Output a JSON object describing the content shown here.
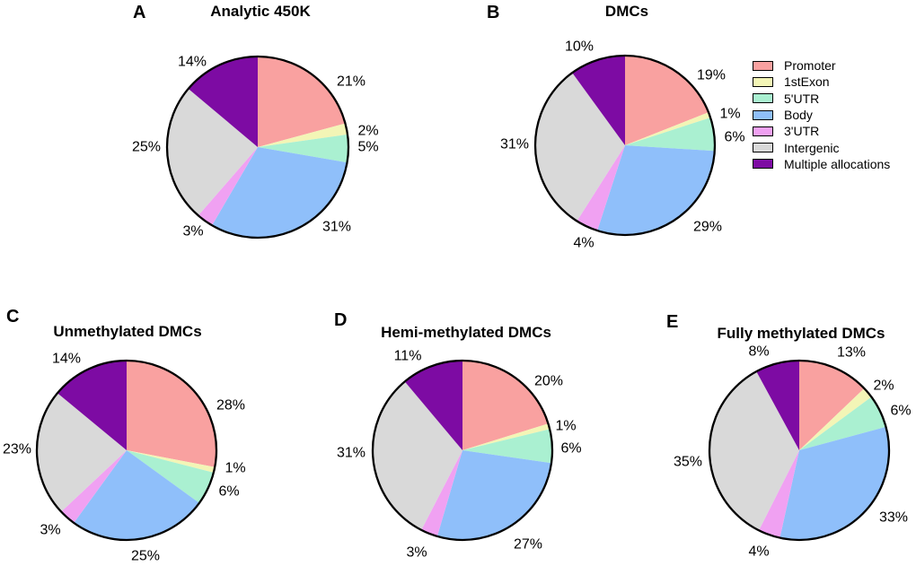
{
  "figure": {
    "background": "#ffffff",
    "panels": [
      {
        "letter": "A",
        "title": "Analytic 450K"
      },
      {
        "letter": "B",
        "title": "DMCs"
      },
      {
        "letter": "C",
        "title": "Unmethylated DMCs"
      },
      {
        "letter": "D",
        "title": "Hemi-methylated DMCs"
      },
      {
        "letter": "E",
        "title": "Fully methylated DMCs"
      }
    ],
    "legend": {
      "position": "right",
      "items": [
        {
          "label": "Promoter",
          "color": "#F9A1A0"
        },
        {
          "label": "1stExon",
          "color": "#F3F5B6"
        },
        {
          "label": "5'UTR",
          "color": "#AAF0D1"
        },
        {
          "label": "Body",
          "color": "#8FBFFA"
        },
        {
          "label": "3'UTR",
          "color": "#F0A1F2"
        },
        {
          "label": "Intergenic",
          "color": "#D9D9D9"
        },
        {
          "label": "Multiple allocations",
          "color": "#7D0BA3"
        }
      ]
    }
  },
  "chart_data": [
    {
      "type": "pie",
      "panel": "A",
      "title": "Analytic 450K",
      "categories": [
        "Promoter",
        "1stExon",
        "5'UTR",
        "Body",
        "3'UTR",
        "Intergenic",
        "Multiple allocations"
      ],
      "values": [
        21,
        2,
        5,
        31,
        3,
        25,
        14
      ],
      "labels": [
        "21%",
        "2%",
        "5%",
        "31%",
        "3%",
        "25%",
        "14%"
      ],
      "unit": "%",
      "start_angle": "12 o'clock",
      "direction": "clockwise",
      "outline_color": "#000000"
    },
    {
      "type": "pie",
      "panel": "B",
      "title": "DMCs",
      "categories": [
        "Promoter",
        "1stExon",
        "5'UTR",
        "Body",
        "3'UTR",
        "Intergenic",
        "Multiple allocations"
      ],
      "values": [
        19,
        1,
        6,
        29,
        4,
        31,
        10
      ],
      "labels": [
        "19%",
        "1%",
        "6%",
        "29%",
        "4%",
        "31%",
        "10%"
      ],
      "unit": "%",
      "start_angle": "12 o'clock",
      "direction": "clockwise",
      "outline_color": "#000000"
    },
    {
      "type": "pie",
      "panel": "C",
      "title": "Unmethylated DMCs",
      "categories": [
        "Promoter",
        "1stExon",
        "5'UTR",
        "Body",
        "3'UTR",
        "Intergenic",
        "Multiple allocations"
      ],
      "values": [
        28,
        1,
        6,
        25,
        3,
        23,
        14
      ],
      "labels": [
        "28%",
        "1%",
        "6%",
        "25%",
        "3%",
        "23%",
        "14%"
      ],
      "unit": "%",
      "start_angle": "12 o'clock",
      "direction": "clockwise",
      "outline_color": "#000000"
    },
    {
      "type": "pie",
      "panel": "D",
      "title": "Hemi-methylated DMCs",
      "categories": [
        "Promoter",
        "1stExon",
        "5'UTR",
        "Body",
        "3'UTR",
        "Intergenic",
        "Multiple allocations"
      ],
      "values": [
        20,
        1,
        6,
        27,
        3,
        31,
        11
      ],
      "labels": [
        "20%",
        "1%",
        "6%",
        "27%",
        "3%",
        "31%",
        "11%"
      ],
      "unit": "%",
      "start_angle": "12 o'clock",
      "direction": "clockwise",
      "outline_color": "#000000"
    },
    {
      "type": "pie",
      "panel": "E",
      "title": "Fully methylated DMCs",
      "categories": [
        "Promoter",
        "1stExon",
        "5'UTR",
        "Body",
        "3'UTR",
        "Intergenic",
        "Multiple allocations"
      ],
      "values": [
        13,
        2,
        6,
        33,
        4,
        35,
        8
      ],
      "labels": [
        "13%",
        "2%",
        "6%",
        "33%",
        "4%",
        "35%",
        "8%"
      ],
      "unit": "%",
      "start_angle": "12 o'clock",
      "direction": "clockwise",
      "outline_color": "#000000"
    }
  ]
}
